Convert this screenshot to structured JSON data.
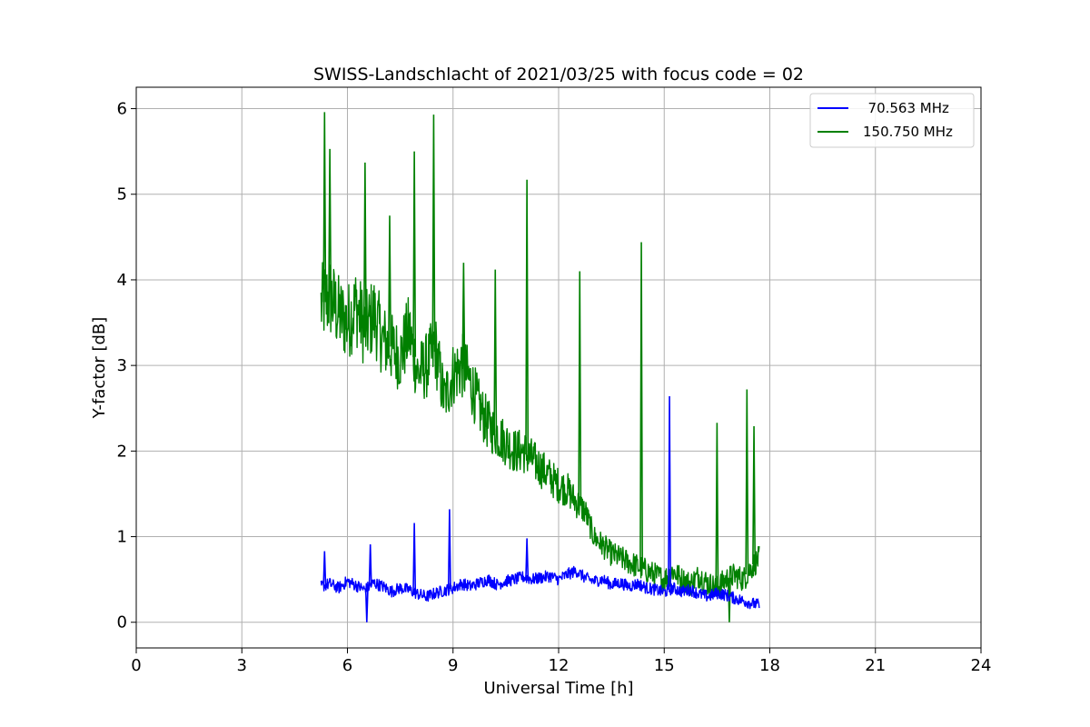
{
  "chart_data": {
    "type": "line",
    "title": "SWISS-Landschlacht of 2021/03/25 with focus code = 02",
    "xlabel": "Universal Time [h]",
    "ylabel": "Y-factor [dB]",
    "xlim": [
      0,
      24
    ],
    "ylim": [
      -0.3,
      6.25
    ],
    "xticks": [
      0,
      3,
      6,
      9,
      12,
      15,
      18,
      21,
      24
    ],
    "yticks": [
      0,
      1,
      2,
      3,
      4,
      5,
      6
    ],
    "xtick_labels": [
      "0",
      "3",
      "6",
      "9",
      "12",
      "15",
      "18",
      "21",
      "24"
    ],
    "ytick_labels": [
      "0",
      "1",
      "2",
      "3",
      "4",
      "5",
      "6"
    ],
    "grid": true,
    "legend_position": "top-right",
    "series": [
      {
        "name": "  70.563 MHz",
        "color": "#0000ff",
        "x": [
          5.25,
          5.5,
          5.75,
          6.0,
          6.25,
          6.5,
          6.75,
          7.0,
          7.25,
          7.5,
          7.75,
          8.0,
          8.25,
          8.5,
          8.75,
          9.0,
          9.25,
          9.5,
          9.75,
          10.0,
          10.25,
          10.5,
          10.75,
          11.0,
          11.25,
          11.5,
          11.75,
          12.0,
          12.25,
          12.5,
          12.75,
          13.0,
          13.25,
          13.5,
          13.75,
          14.0,
          14.25,
          14.5,
          14.75,
          15.0,
          15.25,
          15.5,
          15.75,
          16.0,
          16.25,
          16.5,
          16.75,
          17.0,
          17.25,
          17.5,
          17.7
        ],
        "y": [
          0.42,
          0.45,
          0.4,
          0.48,
          0.43,
          0.38,
          0.46,
          0.42,
          0.36,
          0.4,
          0.38,
          0.33,
          0.3,
          0.34,
          0.37,
          0.4,
          0.45,
          0.42,
          0.46,
          0.5,
          0.44,
          0.48,
          0.5,
          0.53,
          0.5,
          0.52,
          0.54,
          0.5,
          0.56,
          0.6,
          0.52,
          0.48,
          0.5,
          0.44,
          0.46,
          0.42,
          0.45,
          0.4,
          0.38,
          0.35,
          0.4,
          0.36,
          0.38,
          0.33,
          0.3,
          0.34,
          0.32,
          0.28,
          0.25,
          0.22,
          0.2
        ]
      },
      {
        "name": "150.750 MHz",
        "color": "#008000",
        "x": [
          5.25,
          5.5,
          5.75,
          6.0,
          6.25,
          6.5,
          6.75,
          7.0,
          7.25,
          7.5,
          7.75,
          8.0,
          8.25,
          8.5,
          8.75,
          9.0,
          9.25,
          9.5,
          9.75,
          10.0,
          10.25,
          10.5,
          10.75,
          11.0,
          11.25,
          11.5,
          11.75,
          12.0,
          12.25,
          12.5,
          12.75,
          13.0,
          13.25,
          13.5,
          13.75,
          14.0,
          14.25,
          14.5,
          14.75,
          15.0,
          15.25,
          15.5,
          15.75,
          16.0,
          16.25,
          16.5,
          16.75,
          17.0,
          17.25,
          17.5,
          17.7
        ],
        "y": [
          3.7,
          3.8,
          3.6,
          3.5,
          3.7,
          3.4,
          3.6,
          3.3,
          3.2,
          3.1,
          3.4,
          2.9,
          3.0,
          3.2,
          2.6,
          2.9,
          3.0,
          2.8,
          2.5,
          2.3,
          2.2,
          2.1,
          2.0,
          2.0,
          1.9,
          1.8,
          1.7,
          1.6,
          1.55,
          1.4,
          1.3,
          1.0,
          0.9,
          0.8,
          0.75,
          0.7,
          0.65,
          0.6,
          0.55,
          0.5,
          0.6,
          0.5,
          0.45,
          0.55,
          0.45,
          0.4,
          0.5,
          0.55,
          0.5,
          0.65,
          0.75
        ]
      }
    ],
    "spikes": [
      {
        "series": "  70.563 MHz",
        "x": 5.35,
        "y": 0.83
      },
      {
        "series": "  70.563 MHz",
        "x": 6.65,
        "y": 0.91
      },
      {
        "series": "  70.563 MHz",
        "x": 7.9,
        "y": 1.16
      },
      {
        "series": "  70.563 MHz",
        "x": 8.9,
        "y": 1.32
      },
      {
        "series": "  70.563 MHz",
        "x": 11.1,
        "y": 0.98
      },
      {
        "series": "  70.563 MHz",
        "x": 15.15,
        "y": 2.64
      },
      {
        "series": "  70.563 MHz",
        "x": 6.55,
        "y": 0.0
      },
      {
        "series": "150.750 MHz",
        "x": 5.35,
        "y": 5.96
      },
      {
        "series": "150.750 MHz",
        "x": 5.5,
        "y": 5.53
      },
      {
        "series": "150.750 MHz",
        "x": 6.5,
        "y": 5.37
      },
      {
        "series": "150.750 MHz",
        "x": 7.2,
        "y": 4.75
      },
      {
        "series": "150.750 MHz",
        "x": 7.9,
        "y": 5.5
      },
      {
        "series": "150.750 MHz",
        "x": 8.45,
        "y": 5.93
      },
      {
        "series": "150.750 MHz",
        "x": 9.3,
        "y": 4.2
      },
      {
        "series": "150.750 MHz",
        "x": 10.2,
        "y": 4.12
      },
      {
        "series": "150.750 MHz",
        "x": 11.1,
        "y": 5.17
      },
      {
        "series": "150.750 MHz",
        "x": 12.6,
        "y": 4.1
      },
      {
        "series": "150.750 MHz",
        "x": 14.35,
        "y": 4.44
      },
      {
        "series": "150.750 MHz",
        "x": 16.5,
        "y": 2.33
      },
      {
        "series": "150.750 MHz",
        "x": 17.35,
        "y": 2.72
      },
      {
        "series": "150.750 MHz",
        "x": 17.55,
        "y": 2.29
      },
      {
        "series": "150.750 MHz",
        "x": 16.85,
        "y": 0.0
      }
    ]
  }
}
